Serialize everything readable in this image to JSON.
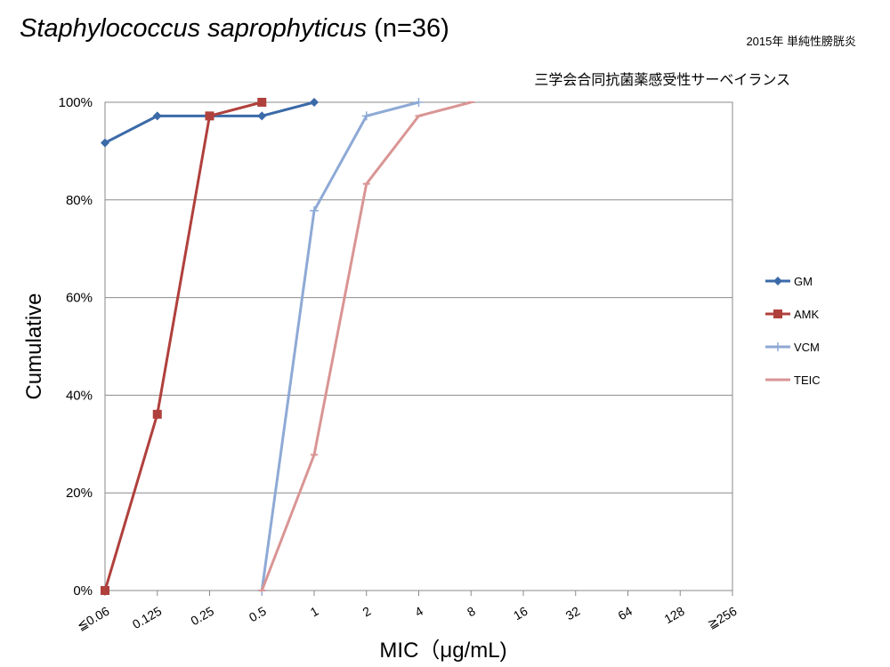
{
  "header": {
    "title_species": "Staphylococcus saprophyticus",
    "title_count": "(n=36)",
    "year_note": "2015年 単純性膀胱炎",
    "survey_note": "三学会合同抗菌薬感受性サーベイランス"
  },
  "chart_data": {
    "type": "line",
    "xlabel": "MIC（μg/mL)",
    "ylabel": "Cumulative",
    "ylim": [
      0,
      100
    ],
    "yticks": [
      "0%",
      "20%",
      "40%",
      "60%",
      "80%",
      "100%"
    ],
    "categories": [
      "≦0.06",
      "0.125",
      "0.25",
      "0.5",
      "1",
      "2",
      "4",
      "8",
      "16",
      "32",
      "64",
      "128",
      "≧256"
    ],
    "grid": true,
    "legend_position": "right",
    "series": [
      {
        "name": "GM",
        "color": "#3B6AA8",
        "marker": "diamond",
        "values": [
          91.7,
          97.2,
          97.2,
          97.2,
          100,
          null,
          null,
          null,
          null,
          null,
          null,
          null,
          null
        ]
      },
      {
        "name": "AMK",
        "color": "#B0403C",
        "marker": "square",
        "values": [
          0,
          36.1,
          97.2,
          100,
          null,
          null,
          null,
          null,
          null,
          null,
          null,
          null,
          null
        ]
      },
      {
        "name": "VCM",
        "color": "#8EA9D5",
        "marker": "plus",
        "values": [
          null,
          null,
          null,
          0,
          77.8,
          97.2,
          100,
          null,
          null,
          null,
          null,
          null,
          null
        ]
      },
      {
        "name": "TEIC",
        "color": "#D99594",
        "marker": "dash",
        "values": [
          null,
          null,
          null,
          0,
          27.8,
          83.3,
          97.2,
          100,
          null,
          null,
          null,
          null,
          null
        ]
      }
    ]
  }
}
